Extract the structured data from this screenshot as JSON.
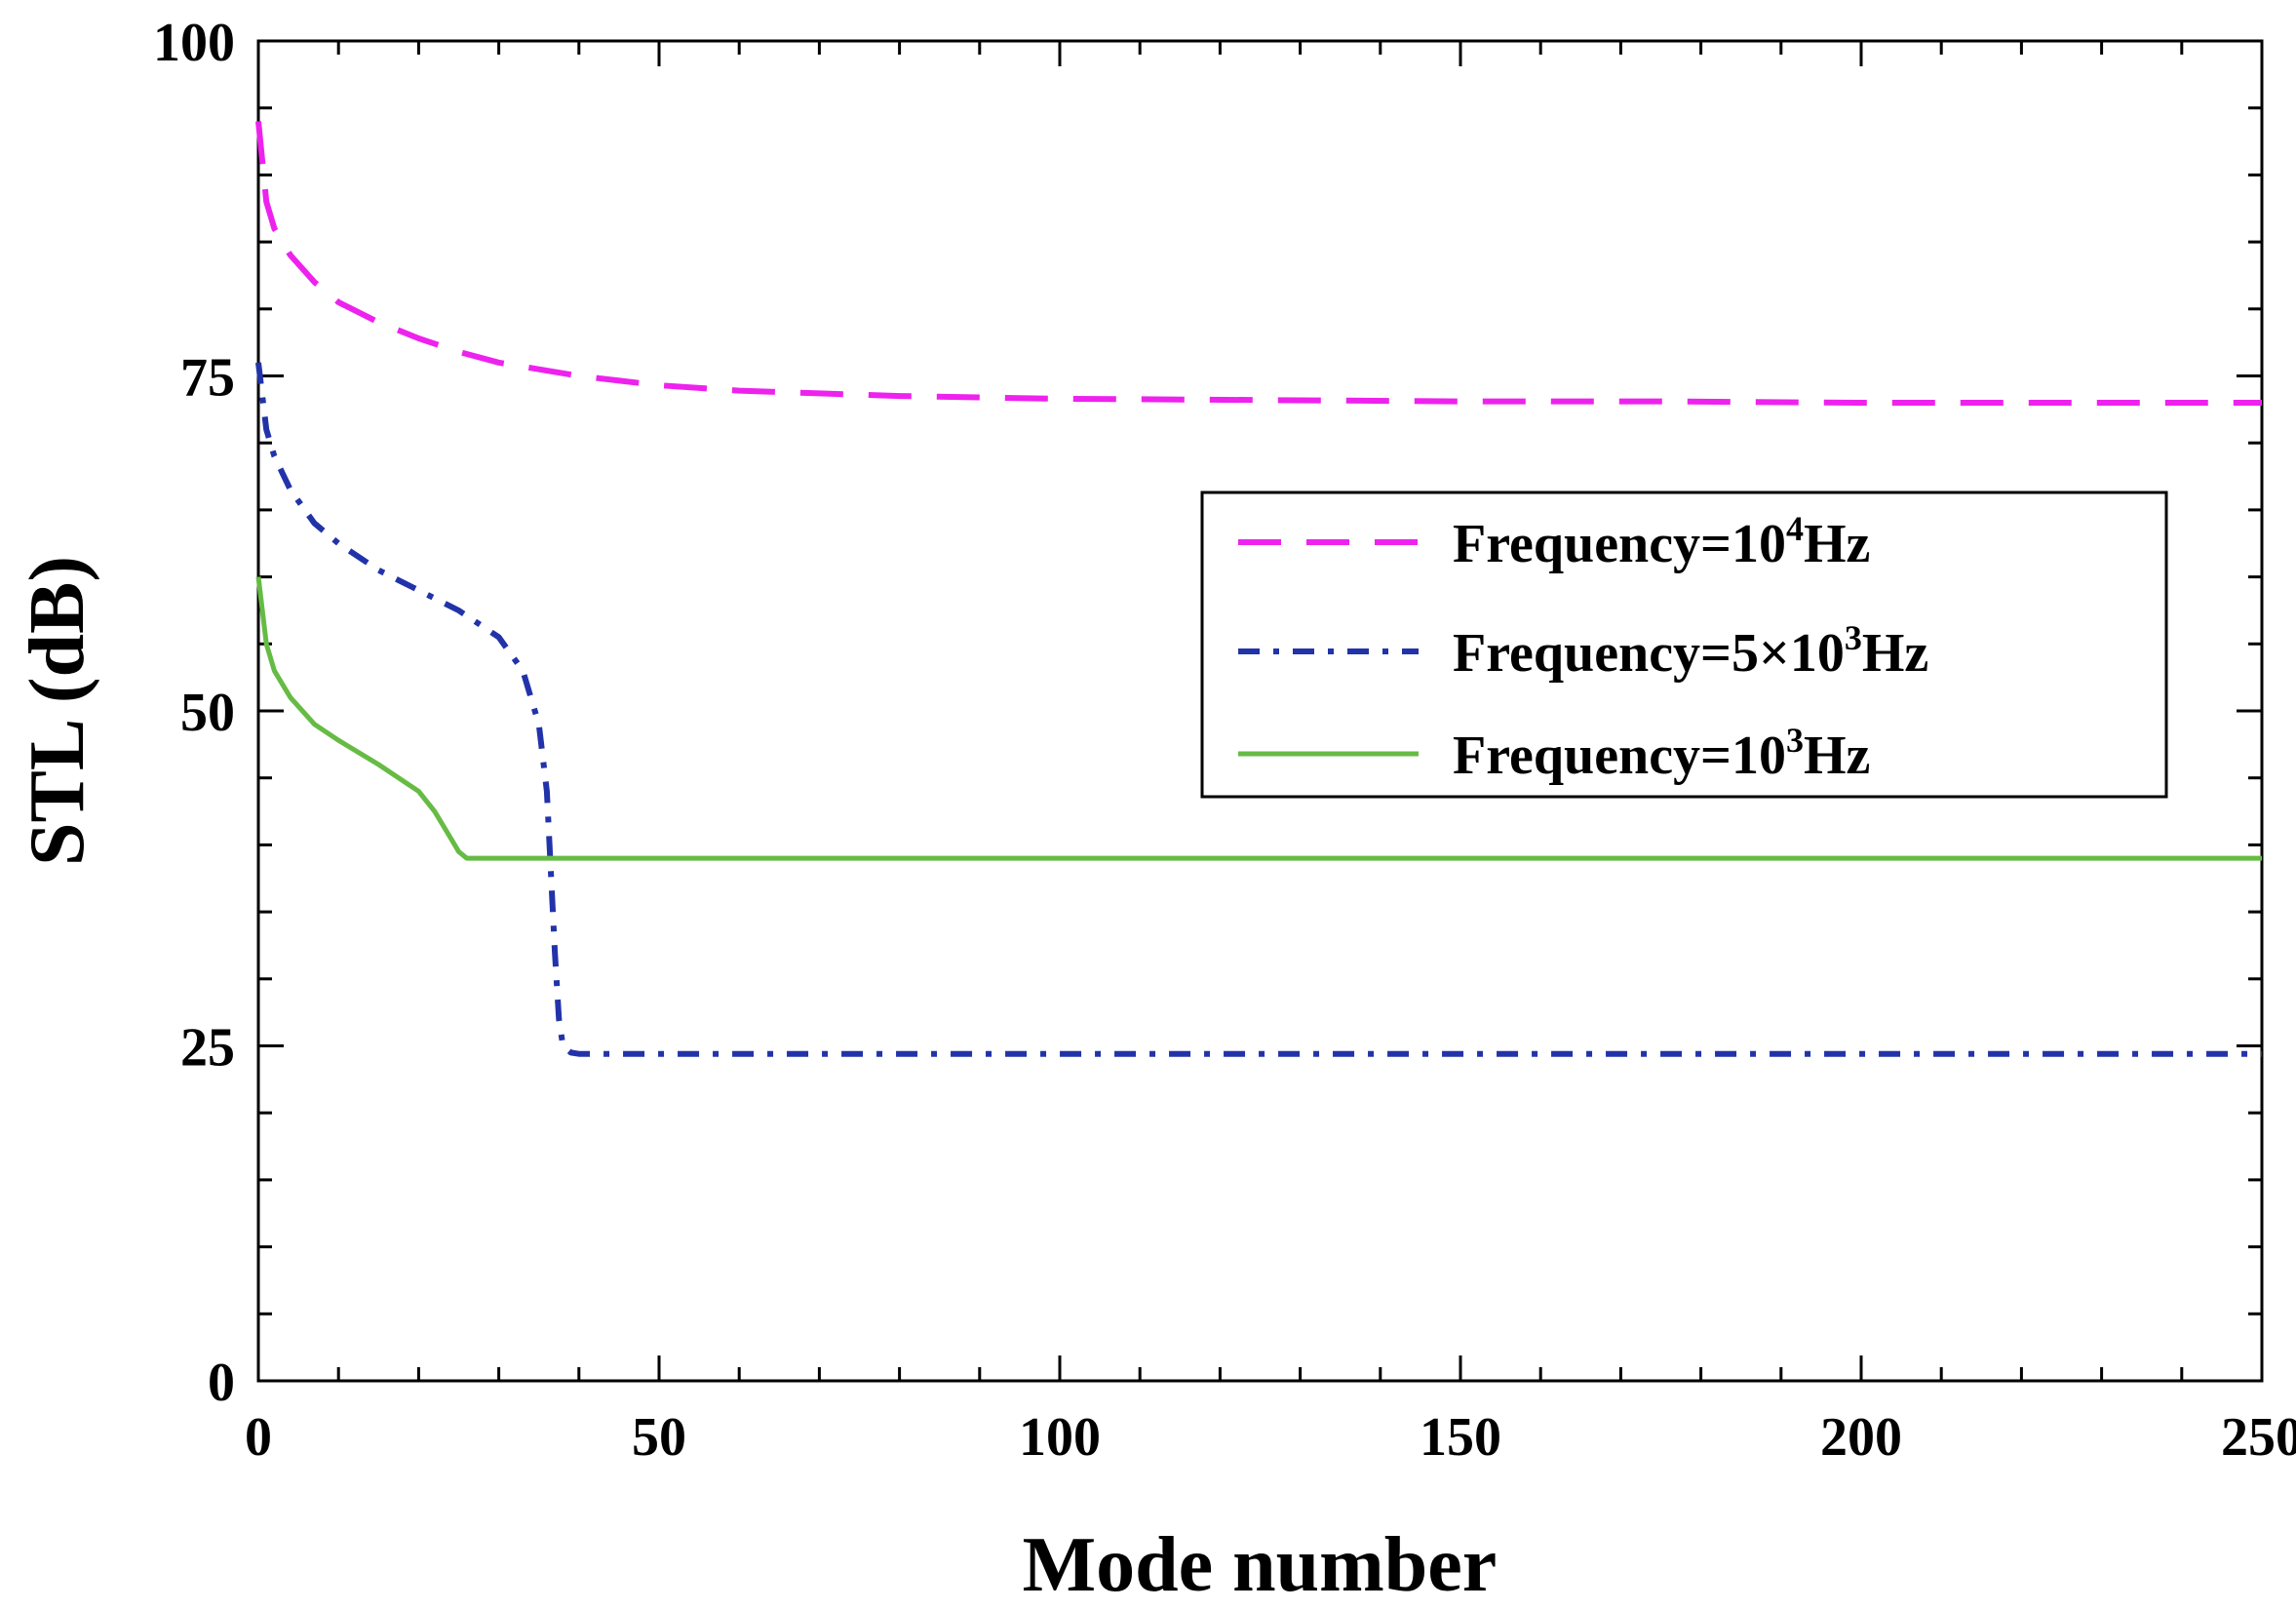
{
  "chart_data": {
    "type": "line",
    "title": "",
    "xlabel": "Mode number",
    "ylabel": "STL (dB)",
    "xlim": [
      0,
      250
    ],
    "ylim": [
      0,
      100
    ],
    "xticks": [
      "0",
      "50",
      "100",
      "150",
      "200",
      "250"
    ],
    "yticks": [
      "0",
      "25",
      "50",
      "75",
      "100"
    ],
    "grid": false,
    "legend_position": "right-center",
    "series": [
      {
        "name": "Frequency=10⁴Hz",
        "label_main": "Frequency=10",
        "label_sup": "4",
        "label_tail": "Hz",
        "color": "#ee22ee",
        "style": "dashed",
        "x": [
          0,
          1,
          2,
          4,
          7,
          10,
          15,
          20,
          25,
          30,
          40,
          50,
          60,
          70,
          80,
          100,
          125,
          150,
          175,
          200,
          225,
          250
        ],
        "y": [
          94,
          88,
          86,
          84,
          82,
          80.5,
          79,
          77.8,
          76.8,
          76,
          75,
          74.3,
          73.9,
          73.7,
          73.5,
          73.3,
          73.2,
          73.1,
          73.1,
          73.0,
          73.0,
          73.0
        ]
      },
      {
        "name": "Frequency=5×10³Hz",
        "label_main": "Frequency=5×10",
        "label_sup": "3",
        "label_tail": "Hz",
        "color": "#2233aa",
        "style": "dashdot",
        "x": [
          0,
          1,
          2,
          4,
          7,
          10,
          15,
          20,
          25,
          30,
          33,
          35,
          36,
          36.5,
          37,
          37.5,
          38,
          39,
          40,
          60,
          100,
          150,
          200,
          250
        ],
        "y": [
          76,
          71,
          69,
          66.5,
          64,
          62.5,
          60.5,
          59,
          57.5,
          55.5,
          53,
          49,
          44,
          38,
          32,
          27,
          25,
          24.5,
          24.4,
          24.4,
          24.4,
          24.4,
          24.4,
          24.4
        ]
      },
      {
        "name": "Frequency=10³Hz",
        "label_main": "Frequency=10",
        "label_sup": "3",
        "label_tail": "Hz",
        "color": "#66bb44",
        "style": "solid",
        "x": [
          0,
          1,
          2,
          4,
          7,
          10,
          15,
          20,
          22,
          24,
          25,
          26,
          27,
          30,
          50,
          100,
          150,
          200,
          250
        ],
        "y": [
          60,
          55,
          53,
          51,
          49,
          47.8,
          46,
          44,
          42.5,
          40.5,
          39.5,
          39,
          39,
          39,
          39,
          39,
          39,
          39,
          39
        ]
      }
    ]
  }
}
